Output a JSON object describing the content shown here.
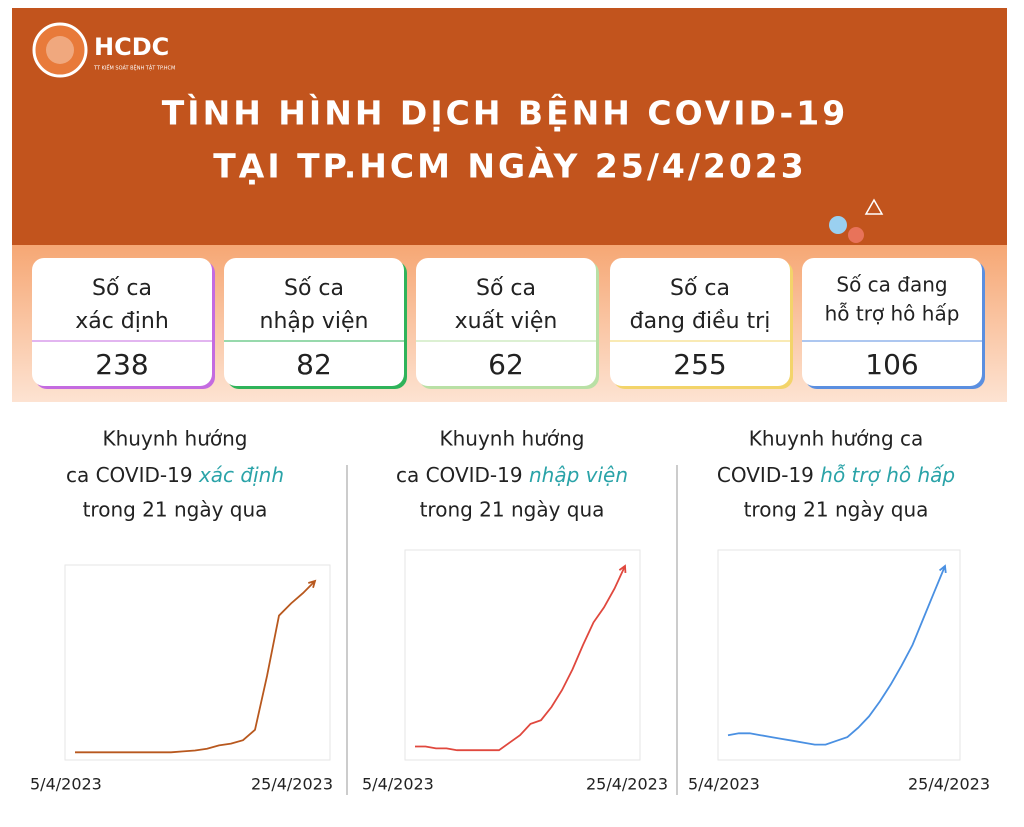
{
  "header": {
    "logo": "HCDC",
    "logo_sub": "TT KIỂM SOÁT BỆNH TẬT TP.HCM",
    "title_lines": [
      "TÌNH HÌNH DỊCH BỆNH COVID-19",
      "TẠI TP.HCM NGÀY 25/4/2023"
    ]
  },
  "stats": [
    {
      "label_lines": [
        "Số ca",
        "xác định"
      ],
      "value": 238,
      "color": "#c46be0"
    },
    {
      "label_lines": [
        "Số ca",
        "nhập viện"
      ],
      "value": 82,
      "color": "#2fb35a"
    },
    {
      "label_lines": [
        "Số ca",
        "xuất viện"
      ],
      "value": 62,
      "color": "#b9e0a5"
    },
    {
      "label_lines": [
        "Số ca",
        "đang điều trị"
      ],
      "value": 255,
      "color": "#f3d46a"
    },
    {
      "label_lines": [
        "Số ca đang",
        "hỗ trợ hô hấp"
      ],
      "value": 106,
      "color": "#5b8fe0"
    }
  ],
  "trends": [
    {
      "title_line1": "Khuynh hướng",
      "title_prefix": "ca COVID-19",
      "title_highlight": "xác định",
      "title_line3": "trong 21 ngày qua",
      "x_start": "5/4/2023",
      "x_end": "25/4/2023",
      "color": "#b8581e",
      "values": [
        1,
        1,
        1,
        1,
        1,
        1,
        1,
        1,
        1,
        1.5,
        2,
        3,
        5,
        6,
        8,
        14,
        45,
        80,
        87,
        93,
        100
      ]
    },
    {
      "title_line1": "Khuynh hướng",
      "title_prefix": "ca COVID-19",
      "title_highlight": "nhập viện",
      "title_line3": "trong 21 ngày qua",
      "x_start": "5/4/2023",
      "x_end": "25/4/2023",
      "color": "#e0483e",
      "values": [
        4,
        4,
        3,
        3,
        2,
        2,
        2,
        2,
        2,
        6,
        10,
        16,
        18,
        25,
        34,
        45,
        58,
        70,
        78,
        88,
        100
      ]
    },
    {
      "title_line1": "Khuynh hướng ca",
      "title_prefix": "COVID-19",
      "title_highlight": "hỗ trợ hô hấp",
      "title_line3": "trong 21 ngày qua",
      "x_start": "5/4/2023",
      "x_end": "25/4/2023",
      "color": "#4a90e2",
      "values": [
        10,
        11,
        11,
        10,
        9,
        8,
        7,
        6,
        5,
        5,
        7,
        9,
        14,
        20,
        28,
        37,
        47,
        58,
        72,
        86,
        100
      ]
    }
  ]
}
